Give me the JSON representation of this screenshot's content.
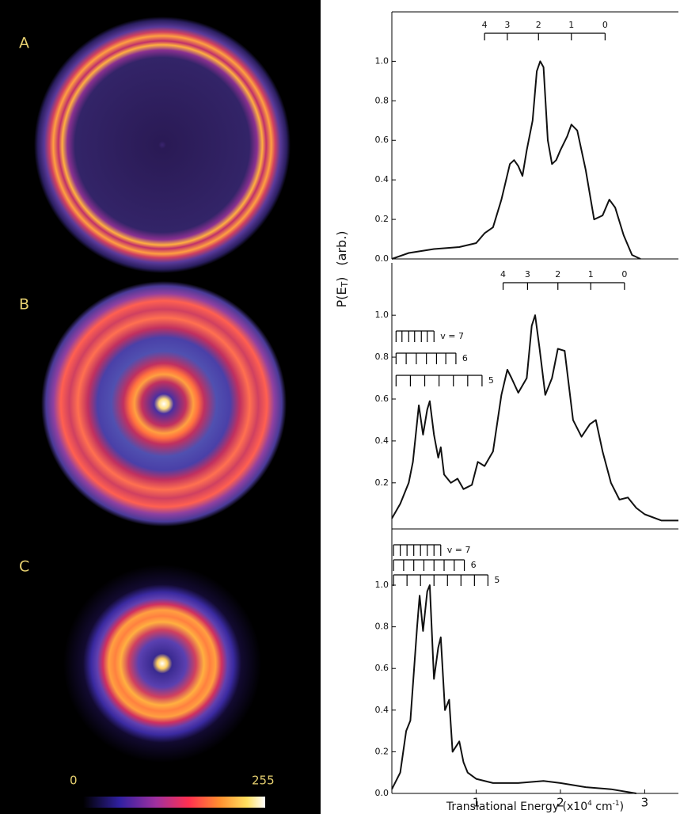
{
  "panels": [
    {
      "label": "A"
    },
    {
      "label": "B"
    },
    {
      "label": "C"
    }
  ],
  "colorbar": {
    "ticks": [
      0,
      255
    ]
  },
  "y_label": {
    "main": "P(E",
    "sub": "T",
    "close": ")",
    "unit": "(arb.)"
  },
  "chart_data": [
    {
      "type": "line",
      "xlim": [
        0,
        3.4
      ],
      "ylim": [
        0,
        1.25
      ],
      "yticks": [
        {
          "value": 0,
          "label": "0.0"
        },
        0.2,
        0.4,
        0.6,
        0.8,
        {
          "value": 1,
          "label": "1.0"
        }
      ],
      "x": [
        0,
        0.2,
        0.5,
        0.8,
        1.0,
        1.1,
        1.2,
        1.3,
        1.4,
        1.45,
        1.5,
        1.55,
        1.6,
        1.67,
        1.72,
        1.76,
        1.8,
        1.85,
        1.9,
        1.95,
        2.0,
        2.08,
        2.13,
        2.2,
        2.3,
        2.4,
        2.5,
        2.58,
        2.65,
        2.75,
        2.85,
        2.95
      ],
      "values": [
        0.0,
        0.03,
        0.05,
        0.06,
        0.08,
        0.13,
        0.16,
        0.3,
        0.48,
        0.5,
        0.47,
        0.42,
        0.55,
        0.7,
        0.95,
        1.0,
        0.97,
        0.6,
        0.48,
        0.5,
        0.55,
        0.62,
        0.68,
        0.65,
        0.45,
        0.2,
        0.22,
        0.3,
        0.26,
        0.12,
        0.02,
        0.0
      ],
      "color": "#111111",
      "progressions": [
        {
          "labels": [
            "4",
            "3",
            "2",
            "1",
            "0"
          ],
          "x": [
            1.1,
            1.37,
            1.74,
            2.13,
            2.53
          ]
        }
      ]
    },
    {
      "type": "line",
      "xlim": [
        0,
        3.4
      ],
      "ylim": [
        -0.02,
        1.25
      ],
      "yticks": [
        0.2,
        0.4,
        0.6,
        0.8,
        {
          "value": 1,
          "label": "1.0"
        }
      ],
      "x": [
        0,
        0.1,
        0.2,
        0.25,
        0.32,
        0.37,
        0.42,
        0.45,
        0.5,
        0.55,
        0.58,
        0.62,
        0.7,
        0.78,
        0.85,
        0.95,
        1.02,
        1.1,
        1.2,
        1.3,
        1.37,
        1.42,
        1.5,
        1.6,
        1.66,
        1.7,
        1.75,
        1.82,
        1.9,
        1.97,
        2.05,
        2.15,
        2.25,
        2.35,
        2.42,
        2.5,
        2.6,
        2.7,
        2.8,
        2.9,
        3.0,
        3.2,
        3.4
      ],
      "values": [
        0.03,
        0.1,
        0.2,
        0.3,
        0.57,
        0.43,
        0.55,
        0.59,
        0.43,
        0.32,
        0.37,
        0.24,
        0.2,
        0.22,
        0.17,
        0.19,
        0.3,
        0.28,
        0.35,
        0.62,
        0.74,
        0.7,
        0.63,
        0.7,
        0.95,
        1.0,
        0.85,
        0.62,
        0.7,
        0.84,
        0.83,
        0.5,
        0.42,
        0.48,
        0.5,
        0.35,
        0.2,
        0.12,
        0.13,
        0.08,
        0.05,
        0.02,
        0.02
      ],
      "color": "#111111",
      "progressions": [
        {
          "labels": [
            "4",
            "3",
            "2",
            "1",
            "0"
          ],
          "x": [
            1.32,
            1.61,
            1.97,
            2.36,
            2.76
          ]
        },
        {
          "label": "v = 7",
          "x": [
            0.05,
            0.12,
            0.2,
            0.27,
            0.35,
            0.42,
            0.5
          ]
        },
        {
          "label": "6",
          "x": [
            0.05,
            0.17,
            0.29,
            0.41,
            0.53,
            0.64,
            0.76
          ]
        },
        {
          "label": "5",
          "x": [
            0.05,
            0.22,
            0.39,
            0.56,
            0.73,
            0.9,
            1.07
          ]
        }
      ]
    },
    {
      "type": "line",
      "xlim": [
        0,
        3.4
      ],
      "ylim": [
        0,
        1.27
      ],
      "yticks": [
        {
          "value": 0,
          "label": "0.0"
        },
        0.2,
        0.4,
        0.6,
        0.8,
        {
          "value": 1,
          "label": "1.0"
        }
      ],
      "xticks": [
        1,
        2,
        3
      ],
      "xlabel": {
        "text": "Translational Energy (x10",
        "exp": "4",
        "unit": " cm",
        "unit_exp": "-1",
        "close": ")"
      },
      "x": [
        0,
        0.1,
        0.17,
        0.22,
        0.3,
        0.33,
        0.37,
        0.42,
        0.45,
        0.5,
        0.55,
        0.58,
        0.63,
        0.68,
        0.72,
        0.8,
        0.85,
        0.9,
        1.0,
        1.2,
        1.5,
        1.8,
        2.0,
        2.3,
        2.6,
        2.9
      ],
      "values": [
        0.02,
        0.1,
        0.3,
        0.35,
        0.8,
        0.95,
        0.78,
        0.97,
        1.0,
        0.55,
        0.7,
        0.75,
        0.4,
        0.45,
        0.2,
        0.25,
        0.15,
        0.1,
        0.07,
        0.05,
        0.05,
        0.06,
        0.05,
        0.03,
        0.02,
        0.0
      ],
      "color": "#111111",
      "progressions": [
        {
          "label": "v = 7",
          "x": [
            0.02,
            0.1,
            0.18,
            0.26,
            0.34,
            0.42,
            0.5,
            0.58
          ]
        },
        {
          "label": "6",
          "x": [
            0.02,
            0.14,
            0.26,
            0.38,
            0.5,
            0.62,
            0.74,
            0.86
          ]
        },
        {
          "label": "5",
          "x": [
            0.02,
            0.18,
            0.34,
            0.5,
            0.66,
            0.82,
            0.98,
            1.14
          ]
        }
      ]
    }
  ]
}
